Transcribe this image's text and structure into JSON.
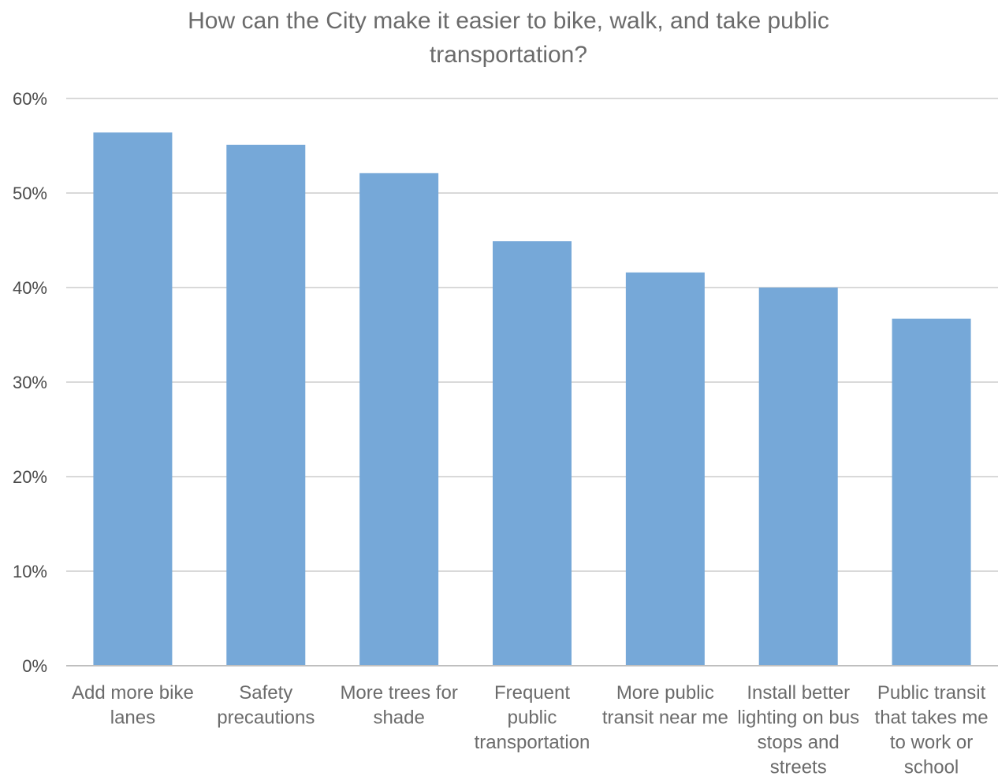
{
  "chart_data": {
    "type": "bar",
    "title_lines": [
      "How can the City make it easier to bike, walk, and take public",
      "transportation?"
    ],
    "categories": [
      [
        "Add more bike",
        "lanes"
      ],
      [
        "Safety",
        "precautions"
      ],
      [
        "More trees for",
        "shade"
      ],
      [
        "Frequent",
        "public",
        "transportation"
      ],
      [
        "More public",
        "transit near me"
      ],
      [
        "Install better",
        "lighting on bus",
        "stops and",
        "streets"
      ],
      [
        "Public transit",
        "that takes me",
        "to work or",
        "school"
      ]
    ],
    "values": [
      56.4,
      55.1,
      52.1,
      44.9,
      41.6,
      40.0,
      36.7
    ],
    "y_ticks": [
      "0%",
      "10%",
      "20%",
      "30%",
      "40%",
      "50%",
      "60%"
    ],
    "ylim": [
      0,
      60
    ],
    "y_unit": "%",
    "grid": true,
    "legend": "none",
    "bar_color": "#76a8d8"
  }
}
